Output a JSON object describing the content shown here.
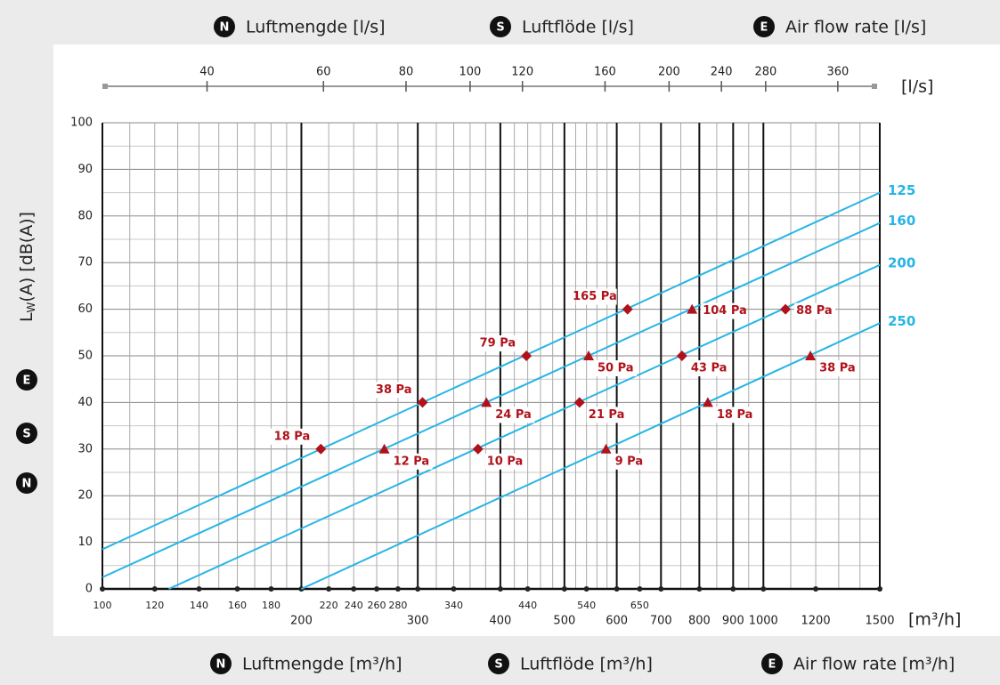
{
  "header": {
    "items": [
      {
        "badge": "N",
        "text": "Luftmengde [l/s]"
      },
      {
        "badge": "S",
        "text": "Luftflöde [l/s]"
      },
      {
        "badge": "E",
        "text": "Air flow rate [l/s]"
      }
    ]
  },
  "footer": {
    "items": [
      {
        "badge": "N",
        "text": "Luftmengde [m³/h]"
      },
      {
        "badge": "S",
        "text": "Luftflöde [m³/h]"
      },
      {
        "badge": "E",
        "text": "Air flow rate [m³/h]"
      }
    ]
  },
  "side": {
    "badges": [
      "E",
      "S",
      "N"
    ]
  },
  "chart_data": {
    "type": "line",
    "xscale": "log",
    "ylabel": {
      "main": "L",
      "sub": "W",
      "rest": "(A) [dB(A)]"
    },
    "xlabel": "[m³/h]",
    "x2label": "[l/s]",
    "xlim": [
      100,
      1500
    ],
    "ylim": [
      0,
      100
    ],
    "yticks": [
      0,
      10,
      20,
      30,
      40,
      50,
      60,
      70,
      80,
      90,
      100
    ],
    "yminor": [
      5,
      15,
      25,
      35,
      45,
      55,
      65,
      75,
      85,
      95
    ],
    "xticks": [
      100,
      120,
      140,
      160,
      180,
      220,
      240,
      260,
      280,
      340,
      440,
      540,
      650
    ],
    "xticks_major": [
      200,
      300,
      400,
      500,
      600,
      700,
      800,
      900,
      1000,
      1200,
      1500
    ],
    "xgrid_major": [
      200,
      300,
      400,
      500,
      600,
      700,
      800,
      900,
      1000
    ],
    "xgrid_minor": [
      110,
      120,
      130,
      140,
      150,
      160,
      170,
      180,
      190,
      220,
      240,
      260,
      280,
      320,
      340,
      360,
      380,
      420,
      440,
      460,
      480,
      520,
      540,
      560,
      580,
      650,
      750,
      850,
      950,
      1100,
      1200,
      1300,
      1400
    ],
    "x2lim": [
      27.78,
      416.67
    ],
    "x2ticks": [
      40,
      60,
      80,
      100,
      120,
      160,
      200,
      240,
      280,
      360
    ],
    "lines": [
      {
        "name": "125",
        "color": "#27b5e5",
        "x": [
          100,
          1500
        ],
        "values": [
          8.5,
          85
        ]
      },
      {
        "name": "160",
        "color": "#27b5e5",
        "x": [
          100,
          1500
        ],
        "values": [
          2.5,
          78.5
        ]
      },
      {
        "name": "200",
        "color": "#27b5e5",
        "x": [
          126,
          1500
        ],
        "values": [
          0,
          69.5
        ]
      },
      {
        "name": "250",
        "color": "#27b5e5",
        "x": [
          200,
          1500
        ],
        "values": [
          0,
          57
        ]
      }
    ],
    "markers": [
      {
        "shape": "diamond",
        "color": "#b0121b",
        "x": [
          214,
          305,
          438,
          623
        ],
        "values": [
          30,
          40,
          50,
          60
        ],
        "labels": [
          "18 Pa",
          "38 Pa",
          "79 Pa",
          "165 Pa"
        ]
      },
      {
        "shape": "triangle",
        "color": "#b0121b",
        "x": [
          267,
          381,
          544,
          780
        ],
        "values": [
          30,
          40,
          50,
          60
        ],
        "labels": [
          "12 Pa",
          "24 Pa",
          "50 Pa",
          "104 Pa"
        ]
      },
      {
        "shape": "diamond",
        "color": "#b0121b",
        "x": [
          370,
          527,
          753,
          1080
        ],
        "values": [
          30,
          40,
          50,
          60
        ],
        "labels": [
          "10 Pa",
          "21 Pa",
          "43 Pa",
          "88 Pa"
        ]
      },
      {
        "shape": "triangle",
        "color": "#b0121b",
        "x": [
          578,
          824,
          1178
        ],
        "values": [
          30,
          40,
          50
        ],
        "labels": [
          "9 Pa",
          "18 Pa",
          "38 Pa"
        ]
      }
    ]
  }
}
